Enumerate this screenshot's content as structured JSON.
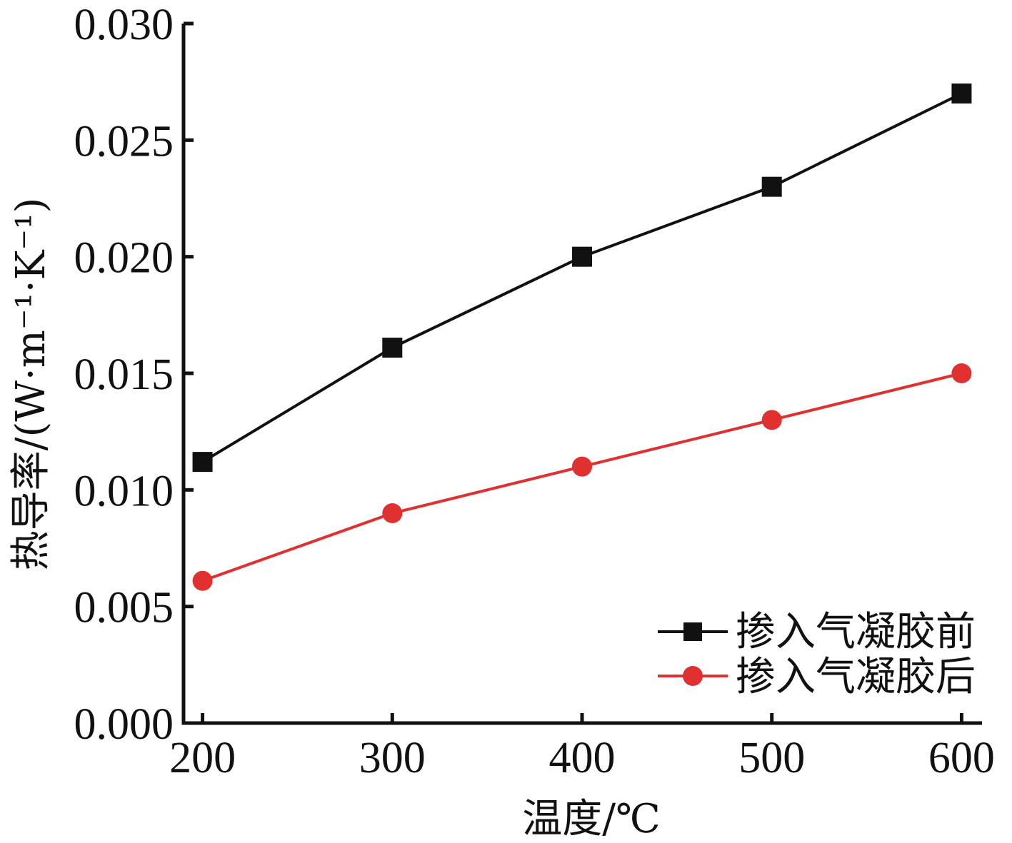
{
  "chart_data": {
    "type": "line",
    "title": "",
    "xlabel": "温度/℃",
    "ylabel": "热导率/(W·m⁻¹·K⁻¹)",
    "x": [
      200,
      300,
      400,
      500,
      600
    ],
    "xlim": [
      190,
      610
    ],
    "ylim": [
      0,
      0.03
    ],
    "x_ticks": [
      "200",
      "300",
      "400",
      "500",
      "600"
    ],
    "y_ticks": [
      "0.000",
      "0.005",
      "0.010",
      "0.015",
      "0.020",
      "0.025",
      "0.030"
    ],
    "y_tick_values": [
      0,
      0.005,
      0.01,
      0.015,
      0.02,
      0.025,
      0.03
    ],
    "grid": false,
    "legend_position": "bottom-right",
    "series": [
      {
        "name": "掺入气凝胶前",
        "color": "#111111",
        "marker": "square",
        "values": [
          0.0112,
          0.0161,
          0.02,
          0.023,
          0.027
        ]
      },
      {
        "name": "掺入气凝胶后",
        "color": "#e03030",
        "marker": "circle",
        "values": [
          0.0061,
          0.009,
          0.011,
          0.013,
          0.015
        ]
      }
    ]
  }
}
